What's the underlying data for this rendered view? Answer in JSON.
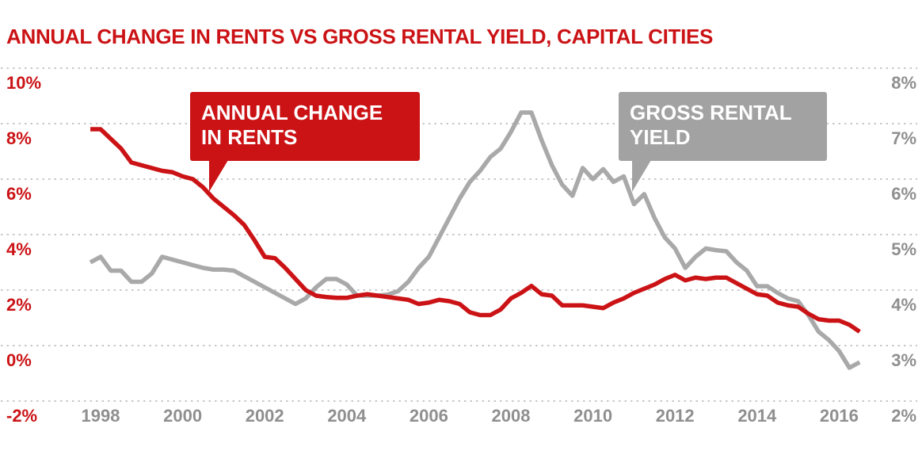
{
  "header": {
    "title": "ANNUAL CHANGE IN RENTS VS GROSS RENTAL YIELD, CAPITAL CITIES"
  },
  "annotations": {
    "rents_callout": {
      "line1": "ANNUAL CHANGE",
      "line2": "IN RENTS"
    },
    "yield_callout": {
      "line1": "GROSS RENTAL",
      "line2": "YIELD"
    }
  },
  "colors": {
    "rents_red": "#cb1316",
    "yield_gray": "#a9a9a9",
    "yield_box_gray": "#a2a2a2",
    "axis_gray": "#8f8f8f",
    "gridline": "#c8c8c8",
    "background": "#ffffff"
  },
  "chart_data": {
    "type": "line",
    "title": "ANNUAL CHANGE IN RENTS VS GROSS RENTAL YIELD, CAPITAL CITIES",
    "grid": "dotted-horizontal",
    "legend_position": "callout-labels-on-plot",
    "x": [
      1997.75,
      1998,
      1998.25,
      1998.5,
      1998.75,
      1999,
      1999.25,
      1999.5,
      1999.75,
      2000,
      2000.25,
      2000.5,
      2000.75,
      2001,
      2001.25,
      2001.5,
      2001.75,
      2002,
      2002.25,
      2002.5,
      2002.75,
      2003,
      2003.25,
      2003.5,
      2003.75,
      2004,
      2004.25,
      2004.5,
      2004.75,
      2005,
      2005.25,
      2005.5,
      2005.75,
      2006,
      2006.25,
      2006.5,
      2006.75,
      2007,
      2007.25,
      2007.5,
      2007.75,
      2008,
      2008.25,
      2008.5,
      2008.75,
      2009,
      2009.25,
      2009.5,
      2009.75,
      2010,
      2010.25,
      2010.5,
      2010.75,
      2011,
      2011.25,
      2011.5,
      2011.75,
      2012,
      2012.25,
      2012.5,
      2012.75,
      2013,
      2013.25,
      2013.5,
      2013.75,
      2014,
      2014.25,
      2014.5,
      2014.75,
      2015,
      2015.25,
      2015.5,
      2015.75,
      2016,
      2016.25,
      2016.5
    ],
    "series": [
      {
        "name": "ANNUAL CHANGE IN RENTS",
        "axis": "left",
        "unit": "%",
        "color": "#cb1316",
        "values": [
          7.8,
          7.8,
          7.45,
          7.1,
          6.6,
          6.5,
          6.4,
          6.3,
          6.25,
          6.1,
          6.0,
          5.7,
          5.3,
          5.0,
          4.7,
          4.35,
          3.8,
          3.2,
          3.15,
          2.8,
          2.4,
          2.0,
          1.8,
          1.75,
          1.72,
          1.72,
          1.8,
          1.85,
          1.8,
          1.75,
          1.7,
          1.65,
          1.5,
          1.55,
          1.65,
          1.6,
          1.5,
          1.2,
          1.1,
          1.1,
          1.3,
          1.7,
          1.9,
          2.15,
          1.85,
          1.8,
          1.45,
          1.45,
          1.45,
          1.4,
          1.35,
          1.55,
          1.7,
          1.9,
          2.05,
          2.2,
          2.4,
          2.55,
          2.35,
          2.45,
          2.4,
          2.45,
          2.45,
          2.25,
          2.05,
          1.85,
          1.8,
          1.55,
          1.45,
          1.4,
          1.15,
          0.95,
          0.9,
          0.9,
          0.75,
          0.5
        ]
      },
      {
        "name": "GROSS RENTAL YIELD",
        "axis": "right",
        "unit": "%",
        "color": "#a9a9a9",
        "values": [
          4.5,
          4.6,
          4.35,
          4.35,
          4.15,
          4.15,
          4.3,
          4.6,
          4.55,
          4.5,
          4.45,
          4.4,
          4.37,
          4.37,
          4.35,
          4.25,
          4.15,
          4.05,
          3.95,
          3.85,
          3.75,
          3.85,
          4.05,
          4.2,
          4.2,
          4.1,
          3.9,
          3.9,
          3.9,
          3.92,
          3.98,
          4.15,
          4.4,
          4.6,
          4.95,
          5.3,
          5.65,
          5.95,
          6.15,
          6.4,
          6.55,
          6.85,
          7.2,
          7.2,
          6.7,
          6.25,
          5.9,
          5.7,
          6.2,
          6.0,
          6.18,
          5.95,
          6.05,
          5.55,
          5.73,
          5.3,
          4.95,
          4.75,
          4.4,
          4.6,
          4.75,
          4.72,
          4.7,
          4.5,
          4.35,
          4.07,
          4.07,
          3.95,
          3.85,
          3.8,
          3.55,
          3.25,
          3.1,
          2.9,
          2.6,
          2.7
        ]
      }
    ],
    "left_axis": {
      "ticks": [
        "10%",
        "8%",
        "6%",
        "4%",
        "2%",
        "0%",
        "-2%"
      ],
      "values": [
        10,
        8,
        6,
        4,
        2,
        0,
        -2
      ],
      "range": [
        -2,
        10
      ]
    },
    "right_axis": {
      "ticks": [
        "8%",
        "7%",
        "6%",
        "5%",
        "4%",
        "3%",
        "2%"
      ],
      "values": [
        8,
        7,
        6,
        5,
        4,
        3,
        2
      ],
      "range": [
        2,
        8
      ]
    },
    "x_axis": {
      "ticks": [
        "1998",
        "2000",
        "2002",
        "2004",
        "2006",
        "2008",
        "2010",
        "2012",
        "2014",
        "2016"
      ],
      "values": [
        1998,
        2000,
        2002,
        2004,
        2006,
        2008,
        2010,
        2012,
        2014,
        2016
      ]
    }
  }
}
